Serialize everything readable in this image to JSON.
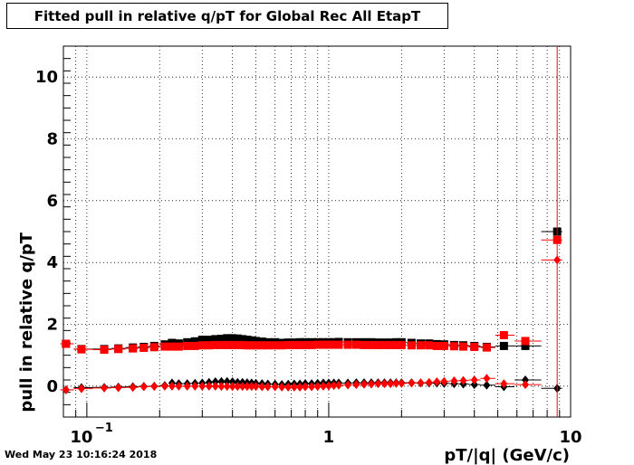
{
  "title": "Fitted pull in relative q/pT for Global Rec All EtapT",
  "timestamp": "Wed May 23 10:16:24 2018",
  "chart_data": {
    "type": "scatter",
    "xscale": "log",
    "xlim": [
      0.08,
      10
    ],
    "ylim": [
      -1,
      11
    ],
    "xlabel": "pT/|q| (GeV/c)",
    "ylabel": "pull in relative q/pT",
    "grid": true,
    "x_tick_labels": [
      {
        "value": 0.1,
        "label": "10",
        "sup": "−1"
      },
      {
        "value": 1,
        "label": "1"
      },
      {
        "value": 10,
        "label": "10"
      }
    ],
    "y_ticks": [
      0,
      2,
      4,
      6,
      8,
      10
    ],
    "series": [
      {
        "color": "#000000",
        "marker": "square",
        "x": [
          0.082,
          0.095,
          0.118,
          0.135,
          0.155,
          0.172,
          0.19,
          0.21,
          0.225,
          0.24,
          0.26,
          0.28,
          0.3,
          0.32,
          0.34,
          0.36,
          0.38,
          0.4,
          0.42,
          0.44,
          0.46,
          0.48,
          0.5,
          0.53,
          0.56,
          0.6,
          0.64,
          0.68,
          0.72,
          0.76,
          0.8,
          0.85,
          0.9,
          0.95,
          1.0,
          1.05,
          1.1,
          1.2,
          1.3,
          1.4,
          1.5,
          1.6,
          1.7,
          1.8,
          1.9,
          2.0,
          2.2,
          2.4,
          2.6,
          2.8,
          3.0,
          3.3,
          3.6,
          4.0,
          4.5,
          5.3,
          6.5,
          8.8
        ],
        "y": [
          1.37,
          1.2,
          1.2,
          1.22,
          1.25,
          1.27,
          1.3,
          1.35,
          1.4,
          1.38,
          1.42,
          1.45,
          1.5,
          1.5,
          1.52,
          1.53,
          1.55,
          1.55,
          1.54,
          1.52,
          1.5,
          1.48,
          1.46,
          1.44,
          1.42,
          1.42,
          1.4,
          1.41,
          1.41,
          1.42,
          1.42,
          1.42,
          1.42,
          1.42,
          1.42,
          1.42,
          1.43,
          1.42,
          1.42,
          1.42,
          1.42,
          1.41,
          1.41,
          1.41,
          1.42,
          1.42,
          1.4,
          1.38,
          1.38,
          1.36,
          1.35,
          1.33,
          1.32,
          1.3,
          1.27,
          1.3,
          1.3,
          5.0
        ]
      },
      {
        "color": "#ff0000",
        "marker": "square",
        "x": [
          0.082,
          0.095,
          0.118,
          0.135,
          0.155,
          0.172,
          0.19,
          0.21,
          0.225,
          0.24,
          0.26,
          0.28,
          0.3,
          0.32,
          0.34,
          0.36,
          0.38,
          0.4,
          0.42,
          0.44,
          0.46,
          0.48,
          0.5,
          0.53,
          0.56,
          0.6,
          0.64,
          0.68,
          0.72,
          0.76,
          0.8,
          0.85,
          0.9,
          0.95,
          1.0,
          1.05,
          1.1,
          1.2,
          1.3,
          1.4,
          1.5,
          1.6,
          1.7,
          1.8,
          1.9,
          2.0,
          2.2,
          2.4,
          2.6,
          2.8,
          3.0,
          3.3,
          3.6,
          4.0,
          4.5,
          5.3,
          6.5,
          8.8
        ],
        "y": [
          1.37,
          1.19,
          1.18,
          1.2,
          1.22,
          1.24,
          1.26,
          1.28,
          1.28,
          1.28,
          1.3,
          1.3,
          1.32,
          1.32,
          1.33,
          1.33,
          1.33,
          1.33,
          1.33,
          1.33,
          1.32,
          1.32,
          1.32,
          1.32,
          1.32,
          1.32,
          1.32,
          1.33,
          1.33,
          1.33,
          1.33,
          1.33,
          1.34,
          1.34,
          1.34,
          1.34,
          1.34,
          1.34,
          1.34,
          1.33,
          1.33,
          1.33,
          1.33,
          1.33,
          1.33,
          1.33,
          1.32,
          1.32,
          1.32,
          1.3,
          1.3,
          1.29,
          1.28,
          1.27,
          1.25,
          1.65,
          1.46,
          4.73
        ]
      },
      {
        "color": "#000000",
        "marker": "diamond",
        "x": [
          0.082,
          0.095,
          0.118,
          0.135,
          0.155,
          0.172,
          0.19,
          0.21,
          0.225,
          0.24,
          0.26,
          0.28,
          0.3,
          0.32,
          0.34,
          0.36,
          0.38,
          0.4,
          0.42,
          0.44,
          0.46,
          0.48,
          0.5,
          0.53,
          0.56,
          0.6,
          0.64,
          0.68,
          0.72,
          0.76,
          0.8,
          0.85,
          0.9,
          0.95,
          1.0,
          1.05,
          1.1,
          1.2,
          1.3,
          1.4,
          1.5,
          1.6,
          1.7,
          1.8,
          1.9,
          2.0,
          2.2,
          2.4,
          2.6,
          2.8,
          3.0,
          3.3,
          3.6,
          4.0,
          4.5,
          5.3,
          6.5,
          8.8
        ],
        "y": [
          -0.12,
          -0.05,
          -0.04,
          -0.03,
          -0.02,
          -0.01,
          0.0,
          0.02,
          0.1,
          0.08,
          0.08,
          0.09,
          0.1,
          0.12,
          0.14,
          0.15,
          0.15,
          0.14,
          0.12,
          0.12,
          0.11,
          0.1,
          0.09,
          0.08,
          0.07,
          0.06,
          0.05,
          0.06,
          0.07,
          0.07,
          0.08,
          0.08,
          0.09,
          0.1,
          0.1,
          0.1,
          0.1,
          0.1,
          0.11,
          0.11,
          0.11,
          0.11,
          0.11,
          0.11,
          0.11,
          0.11,
          0.11,
          0.1,
          0.1,
          0.1,
          0.09,
          0.08,
          0.07,
          0.05,
          0.03,
          -0.02,
          0.2,
          -0.07
        ]
      },
      {
        "color": "#ff0000",
        "marker": "diamond",
        "x": [
          0.082,
          0.095,
          0.118,
          0.135,
          0.155,
          0.172,
          0.19,
          0.21,
          0.225,
          0.24,
          0.26,
          0.28,
          0.3,
          0.32,
          0.34,
          0.36,
          0.38,
          0.4,
          0.42,
          0.44,
          0.46,
          0.48,
          0.5,
          0.53,
          0.56,
          0.6,
          0.64,
          0.68,
          0.72,
          0.76,
          0.8,
          0.85,
          0.9,
          0.95,
          1.0,
          1.05,
          1.1,
          1.2,
          1.3,
          1.4,
          1.5,
          1.6,
          1.7,
          1.8,
          1.9,
          2.0,
          2.2,
          2.4,
          2.6,
          2.8,
          3.0,
          3.3,
          3.6,
          4.0,
          4.5,
          5.3,
          6.5,
          8.8
        ],
        "y": [
          -0.12,
          -0.08,
          -0.06,
          -0.05,
          -0.04,
          -0.02,
          -0.01,
          0.0,
          0.0,
          0.0,
          0.0,
          0.0,
          0.0,
          0.0,
          0.0,
          -0.01,
          -0.01,
          -0.01,
          -0.01,
          -0.01,
          -0.01,
          -0.01,
          -0.01,
          -0.02,
          -0.02,
          -0.02,
          -0.03,
          -0.03,
          -0.03,
          -0.03,
          -0.02,
          -0.02,
          -0.01,
          0.0,
          0.01,
          0.02,
          0.03,
          0.04,
          0.05,
          0.06,
          0.07,
          0.08,
          0.08,
          0.08,
          0.09,
          0.09,
          0.1,
          0.11,
          0.12,
          0.14,
          0.15,
          0.17,
          0.18,
          0.2,
          0.25,
          0.08,
          0.05,
          4.08
        ]
      }
    ]
  }
}
